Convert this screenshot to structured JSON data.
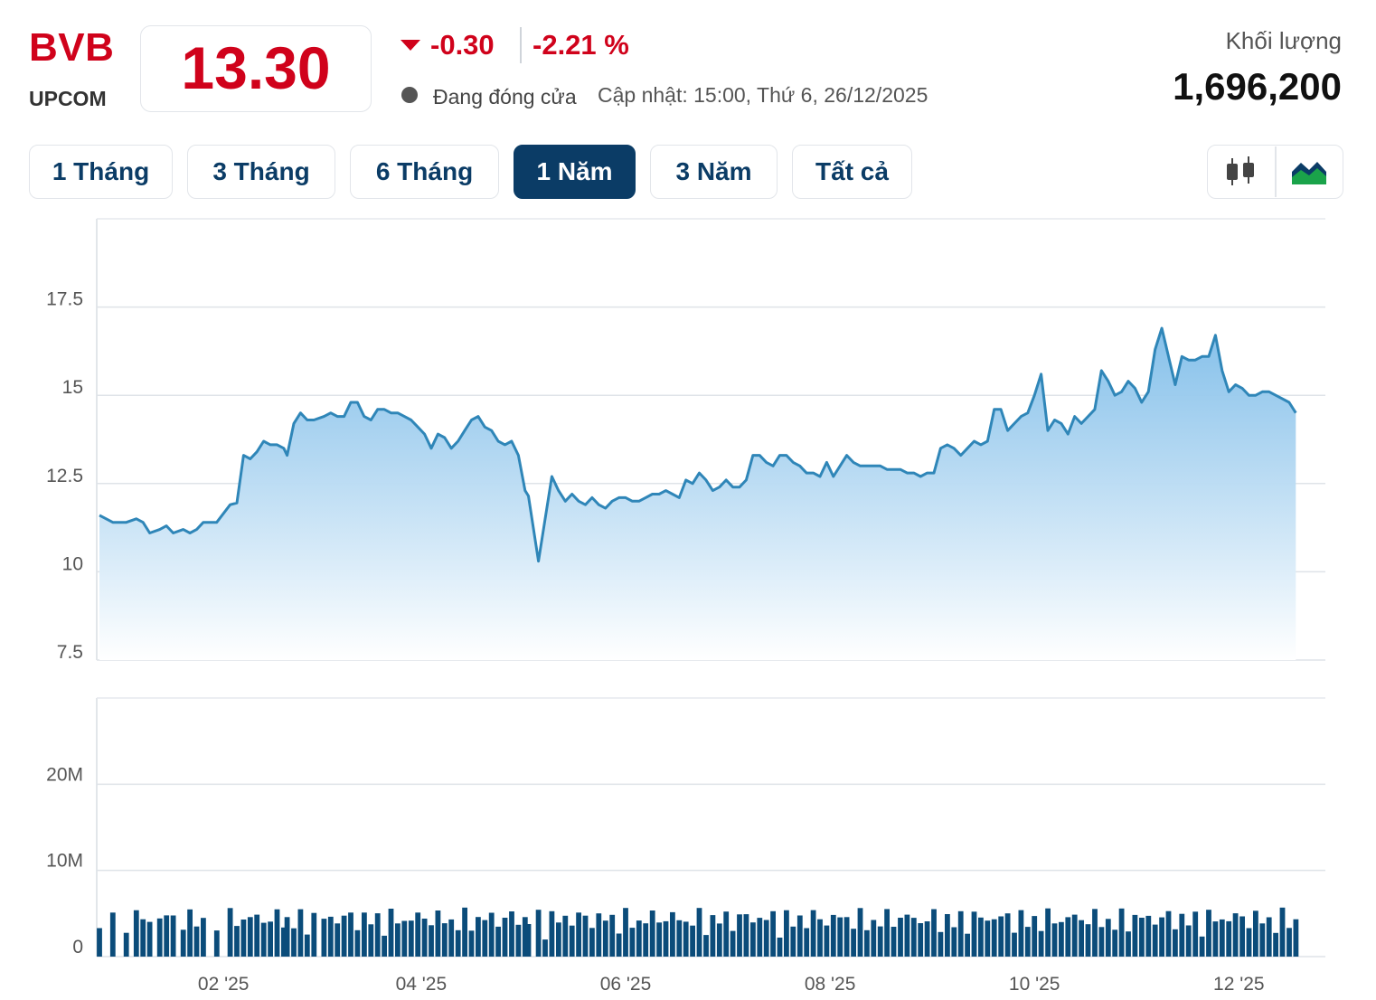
{
  "header": {
    "symbol": "BVB",
    "exchange": "UPCOM",
    "price": "13.30",
    "change": "-0.30",
    "change_pct": "-2.21 %",
    "status": "Đang đóng cửa",
    "updated": "Cập nhật: 15:00, Thứ 6, 26/12/2025",
    "volume_label": "Khối lượng",
    "volume_value": "1,696,200"
  },
  "ranges": [
    {
      "label": "1 Tháng",
      "active": false
    },
    {
      "label": "3 Tháng",
      "active": false
    },
    {
      "label": "6 Tháng",
      "active": false
    },
    {
      "label": "1 Năm",
      "active": true
    },
    {
      "label": "3 Năm",
      "active": false
    },
    {
      "label": "Tất cả",
      "active": false
    }
  ],
  "chart_toggle": {
    "options": [
      "candlestick-icon",
      "area-chart-icon"
    ],
    "selected": "area-chart-icon"
  },
  "colors": {
    "price_line": "#2f86b8",
    "area_top": "#7fbde9",
    "area_bottom": "#ffffff",
    "volume_bar": "#0b4c7a",
    "down": "#d0021b",
    "active_tab": "#0b3c66"
  },
  "chart_data": [
    {
      "type": "area",
      "series_name": "Price",
      "ylim": [
        7.5,
        20
      ],
      "y_ticks": [
        "7.5",
        "10",
        "12.5",
        "15",
        "17.5"
      ],
      "x_range": [
        "2024-12-26",
        "2025-12-26"
      ],
      "x_ticks": [
        "02 '25",
        "04 '25",
        "06 '25",
        "08 '25",
        "10 '25",
        "12 '25"
      ],
      "x_tick_dates": [
        "2025-02-01",
        "2025-04-01",
        "2025-06-01",
        "2025-08-01",
        "2025-10-01",
        "2025-12-01"
      ],
      "grid": true,
      "points": [
        [
          "2024-12-26",
          11.6
        ],
        [
          "2024-12-30",
          11.4
        ],
        [
          "2025-01-03",
          11.4
        ],
        [
          "2025-01-06",
          11.5
        ],
        [
          "2025-01-08",
          11.4
        ],
        [
          "2025-01-10",
          11.1
        ],
        [
          "2025-01-13",
          11.2
        ],
        [
          "2025-01-15",
          11.3
        ],
        [
          "2025-01-17",
          11.1
        ],
        [
          "2025-01-20",
          11.2
        ],
        [
          "2025-01-22",
          11.1
        ],
        [
          "2025-01-24",
          11.2
        ],
        [
          "2025-01-26",
          11.4
        ],
        [
          "2025-01-30",
          11.4
        ],
        [
          "2025-02-03",
          11.9
        ],
        [
          "2025-02-05",
          11.95
        ],
        [
          "2025-02-07",
          13.3
        ],
        [
          "2025-02-09",
          13.2
        ],
        [
          "2025-02-11",
          13.4
        ],
        [
          "2025-02-13",
          13.7
        ],
        [
          "2025-02-15",
          13.6
        ],
        [
          "2025-02-17",
          13.6
        ],
        [
          "2025-02-19",
          13.5
        ],
        [
          "2025-02-20",
          13.3
        ],
        [
          "2025-02-22",
          14.2
        ],
        [
          "2025-02-24",
          14.5
        ],
        [
          "2025-02-26",
          14.3
        ],
        [
          "2025-02-28",
          14.3
        ],
        [
          "2025-03-03",
          14.4
        ],
        [
          "2025-03-05",
          14.5
        ],
        [
          "2025-03-07",
          14.4
        ],
        [
          "2025-03-09",
          14.4
        ],
        [
          "2025-03-11",
          14.8
        ],
        [
          "2025-03-13",
          14.8
        ],
        [
          "2025-03-15",
          14.4
        ],
        [
          "2025-03-17",
          14.3
        ],
        [
          "2025-03-19",
          14.6
        ],
        [
          "2025-03-21",
          14.6
        ],
        [
          "2025-03-23",
          14.5
        ],
        [
          "2025-03-25",
          14.5
        ],
        [
          "2025-03-27",
          14.4
        ],
        [
          "2025-03-29",
          14.3
        ],
        [
          "2025-03-31",
          14.1
        ],
        [
          "2025-04-02",
          13.9
        ],
        [
          "2025-04-04",
          13.5
        ],
        [
          "2025-04-06",
          13.9
        ],
        [
          "2025-04-08",
          13.8
        ],
        [
          "2025-04-10",
          13.5
        ],
        [
          "2025-04-12",
          13.7
        ],
        [
          "2025-04-14",
          14.0
        ],
        [
          "2025-04-16",
          14.3
        ],
        [
          "2025-04-18",
          14.4
        ],
        [
          "2025-04-20",
          14.1
        ],
        [
          "2025-04-22",
          14.0
        ],
        [
          "2025-04-24",
          13.7
        ],
        [
          "2025-04-26",
          13.6
        ],
        [
          "2025-04-28",
          13.7
        ],
        [
          "2025-04-30",
          13.3
        ],
        [
          "2025-05-02",
          12.3
        ],
        [
          "2025-05-03",
          12.15
        ],
        [
          "2025-05-06",
          10.3
        ],
        [
          "2025-05-08",
          11.5
        ],
        [
          "2025-05-10",
          12.7
        ],
        [
          "2025-05-12",
          12.3
        ],
        [
          "2025-05-14",
          12.0
        ],
        [
          "2025-05-16",
          12.2
        ],
        [
          "2025-05-18",
          12.0
        ],
        [
          "2025-05-20",
          11.9
        ],
        [
          "2025-05-22",
          12.1
        ],
        [
          "2025-05-24",
          11.9
        ],
        [
          "2025-05-26",
          11.8
        ],
        [
          "2025-05-28",
          12.0
        ],
        [
          "2025-05-30",
          12.1
        ],
        [
          "2025-06-01",
          12.1
        ],
        [
          "2025-06-03",
          12.0
        ],
        [
          "2025-06-05",
          12.0
        ],
        [
          "2025-06-07",
          12.1
        ],
        [
          "2025-06-09",
          12.2
        ],
        [
          "2025-06-11",
          12.2
        ],
        [
          "2025-06-13",
          12.3
        ],
        [
          "2025-06-15",
          12.2
        ],
        [
          "2025-06-17",
          12.1
        ],
        [
          "2025-06-19",
          12.6
        ],
        [
          "2025-06-21",
          12.5
        ],
        [
          "2025-06-23",
          12.8
        ],
        [
          "2025-06-25",
          12.6
        ],
        [
          "2025-06-27",
          12.3
        ],
        [
          "2025-06-29",
          12.4
        ],
        [
          "2025-07-01",
          12.6
        ],
        [
          "2025-07-03",
          12.4
        ],
        [
          "2025-07-05",
          12.4
        ],
        [
          "2025-07-07",
          12.6
        ],
        [
          "2025-07-09",
          13.3
        ],
        [
          "2025-07-11",
          13.3
        ],
        [
          "2025-07-13",
          13.1
        ],
        [
          "2025-07-15",
          13.0
        ],
        [
          "2025-07-17",
          13.3
        ],
        [
          "2025-07-19",
          13.3
        ],
        [
          "2025-07-21",
          13.1
        ],
        [
          "2025-07-23",
          13.0
        ],
        [
          "2025-07-25",
          12.8
        ],
        [
          "2025-07-27",
          12.8
        ],
        [
          "2025-07-29",
          12.7
        ],
        [
          "2025-07-31",
          13.1
        ],
        [
          "2025-08-02",
          12.7
        ],
        [
          "2025-08-04",
          13.0
        ],
        [
          "2025-08-06",
          13.3
        ],
        [
          "2025-08-08",
          13.1
        ],
        [
          "2025-08-10",
          13.0
        ],
        [
          "2025-08-12",
          13.0
        ],
        [
          "2025-08-14",
          13.0
        ],
        [
          "2025-08-16",
          13.0
        ],
        [
          "2025-08-18",
          12.9
        ],
        [
          "2025-08-20",
          12.9
        ],
        [
          "2025-08-22",
          12.9
        ],
        [
          "2025-08-24",
          12.8
        ],
        [
          "2025-08-26",
          12.8
        ],
        [
          "2025-08-28",
          12.7
        ],
        [
          "2025-08-30",
          12.8
        ],
        [
          "2025-09-01",
          12.8
        ],
        [
          "2025-09-03",
          13.5
        ],
        [
          "2025-09-05",
          13.6
        ],
        [
          "2025-09-07",
          13.5
        ],
        [
          "2025-09-09",
          13.3
        ],
        [
          "2025-09-11",
          13.5
        ],
        [
          "2025-09-13",
          13.7
        ],
        [
          "2025-09-15",
          13.6
        ],
        [
          "2025-09-17",
          13.7
        ],
        [
          "2025-09-19",
          14.6
        ],
        [
          "2025-09-21",
          14.6
        ],
        [
          "2025-09-23",
          14.0
        ],
        [
          "2025-09-25",
          14.2
        ],
        [
          "2025-09-27",
          14.4
        ],
        [
          "2025-09-29",
          14.5
        ],
        [
          "2025-10-01",
          15.0
        ],
        [
          "2025-10-03",
          15.6
        ],
        [
          "2025-10-05",
          14.0
        ],
        [
          "2025-10-07",
          14.3
        ],
        [
          "2025-10-09",
          14.2
        ],
        [
          "2025-10-11",
          13.9
        ],
        [
          "2025-10-13",
          14.4
        ],
        [
          "2025-10-15",
          14.2
        ],
        [
          "2025-10-17",
          14.4
        ],
        [
          "2025-10-19",
          14.6
        ],
        [
          "2025-10-21",
          15.7
        ],
        [
          "2025-10-23",
          15.4
        ],
        [
          "2025-10-25",
          15.0
        ],
        [
          "2025-10-27",
          15.1
        ],
        [
          "2025-10-29",
          15.4
        ],
        [
          "2025-10-31",
          15.2
        ],
        [
          "2025-11-02",
          14.8
        ],
        [
          "2025-11-04",
          15.1
        ],
        [
          "2025-11-06",
          16.3
        ],
        [
          "2025-11-08",
          16.9
        ],
        [
          "2025-11-10",
          16.1
        ],
        [
          "2025-11-12",
          15.3
        ],
        [
          "2025-11-14",
          16.1
        ],
        [
          "2025-11-16",
          16.0
        ],
        [
          "2025-11-18",
          16.0
        ],
        [
          "2025-11-20",
          16.1
        ],
        [
          "2025-11-22",
          16.1
        ],
        [
          "2025-11-24",
          16.7
        ],
        [
          "2025-11-26",
          15.7
        ],
        [
          "2025-11-28",
          15.1
        ],
        [
          "2025-11-30",
          15.3
        ],
        [
          "2025-12-02",
          15.2
        ],
        [
          "2025-12-04",
          15.0
        ],
        [
          "2025-12-06",
          15.0
        ],
        [
          "2025-12-08",
          15.1
        ],
        [
          "2025-12-10",
          15.1
        ],
        [
          "2025-12-12",
          15.0
        ],
        [
          "2025-12-14",
          14.9
        ],
        [
          "2025-12-16",
          14.8
        ],
        [
          "2025-12-18",
          14.5
        ]
      ]
    },
    {
      "type": "bar",
      "series_name": "Volume",
      "ylim": [
        0,
        30000000
      ],
      "y_ticks": [
        "0",
        "10M",
        "20M"
      ],
      "grid": true
    }
  ]
}
